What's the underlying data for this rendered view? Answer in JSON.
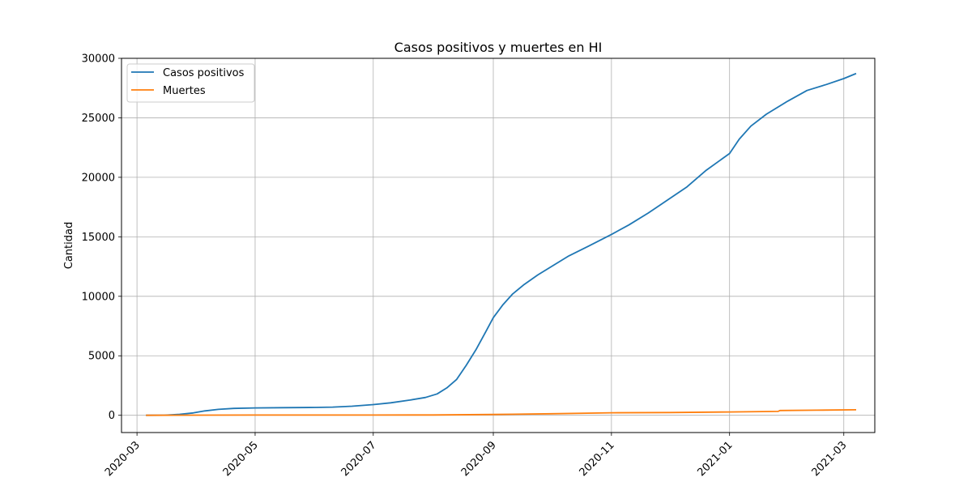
{
  "chart_data": {
    "type": "line",
    "title": "Casos positivos y muertes en HI",
    "xlabel": "",
    "ylabel": "Cantidad",
    "xlim": [
      "2020-02-22",
      "2021-03-17"
    ],
    "ylim": [
      -1450,
      30000
    ],
    "x_ticks": [
      "2020-03-01",
      "2020-05-01",
      "2020-07-01",
      "2020-09-01",
      "2020-11-01",
      "2021-01-01",
      "2021-03-01"
    ],
    "x_tick_labels": [
      "2020-03",
      "2020-05",
      "2020-07",
      "2020-09",
      "2020-11",
      "2021-01",
      "2021-03"
    ],
    "y_ticks": [
      0,
      5000,
      10000,
      15000,
      20000,
      25000,
      30000
    ],
    "y_tick_labels": [
      "0",
      "5000",
      "10000",
      "15000",
      "20000",
      "25000",
      "30000"
    ],
    "grid": true,
    "legend_position": "top-left",
    "series": [
      {
        "name": "Casos positivos",
        "color": "#1f77b4",
        "points": [
          [
            "2020-03-06",
            0
          ],
          [
            "2020-03-15",
            10
          ],
          [
            "2020-03-23",
            80
          ],
          [
            "2020-03-30",
            200
          ],
          [
            "2020-04-05",
            370
          ],
          [
            "2020-04-12",
            500
          ],
          [
            "2020-04-20",
            580
          ],
          [
            "2020-05-01",
            620
          ],
          [
            "2020-05-15",
            640
          ],
          [
            "2020-06-01",
            660
          ],
          [
            "2020-06-10",
            690
          ],
          [
            "2020-06-20",
            760
          ],
          [
            "2020-07-01",
            900
          ],
          [
            "2020-07-10",
            1050
          ],
          [
            "2020-07-20",
            1280
          ],
          [
            "2020-07-28",
            1500
          ],
          [
            "2020-08-03",
            1800
          ],
          [
            "2020-08-08",
            2300
          ],
          [
            "2020-08-13",
            3000
          ],
          [
            "2020-08-18",
            4200
          ],
          [
            "2020-08-23",
            5500
          ],
          [
            "2020-08-28",
            7000
          ],
          [
            "2020-09-01",
            8200
          ],
          [
            "2020-09-06",
            9300
          ],
          [
            "2020-09-11",
            10200
          ],
          [
            "2020-09-17",
            11000
          ],
          [
            "2020-09-24",
            11800
          ],
          [
            "2020-10-01",
            12500
          ],
          [
            "2020-10-10",
            13400
          ],
          [
            "2020-10-20",
            14200
          ],
          [
            "2020-11-01",
            15200
          ],
          [
            "2020-11-10",
            16000
          ],
          [
            "2020-11-20",
            17000
          ],
          [
            "2020-12-01",
            18200
          ],
          [
            "2020-12-10",
            19200
          ],
          [
            "2020-12-20",
            20600
          ],
          [
            "2021-01-01",
            22000
          ],
          [
            "2021-01-06",
            23200
          ],
          [
            "2021-01-12",
            24300
          ],
          [
            "2021-01-20",
            25300
          ],
          [
            "2021-01-31",
            26400
          ],
          [
            "2021-02-10",
            27300
          ],
          [
            "2021-02-20",
            27800
          ],
          [
            "2021-03-01",
            28300
          ],
          [
            "2021-03-07",
            28700
          ]
        ]
      },
      {
        "name": "Muertes",
        "color": "#ff7f0e",
        "points": [
          [
            "2020-03-06",
            0
          ],
          [
            "2020-05-01",
            17
          ],
          [
            "2020-07-01",
            20
          ],
          [
            "2020-08-01",
            25
          ],
          [
            "2020-09-01",
            70
          ],
          [
            "2020-10-01",
            130
          ],
          [
            "2020-11-01",
            210
          ],
          [
            "2020-12-01",
            230
          ],
          [
            "2021-01-01",
            280
          ],
          [
            "2021-01-26",
            330
          ],
          [
            "2021-01-27",
            400
          ],
          [
            "2021-02-15",
            430
          ],
          [
            "2021-03-07",
            460
          ]
        ]
      }
    ]
  }
}
